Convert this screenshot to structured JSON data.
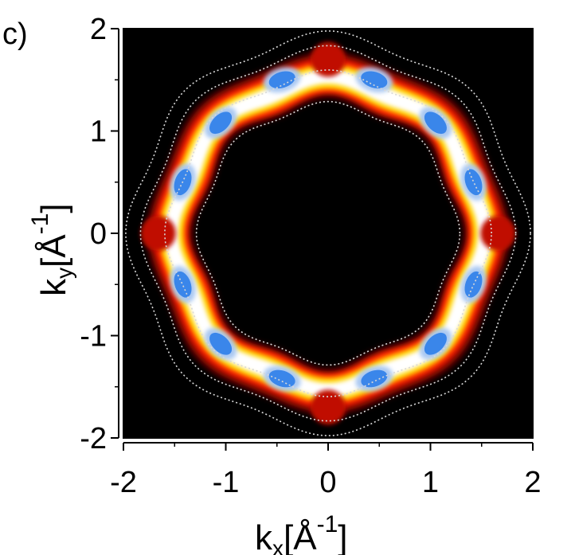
{
  "panel_label": "c)",
  "chart_data": {
    "type": "heatmap",
    "title": "",
    "xlabel": {
      "main": "k",
      "sub": "x",
      "unit": "[Å",
      "exp": "-1",
      "close": "]"
    },
    "ylabel": {
      "main": "k",
      "sub": "y",
      "unit": "[Å",
      "exp": "-1",
      "close": "]"
    },
    "xlim": [
      -2,
      2
    ],
    "ylim": [
      -2,
      2
    ],
    "xticks": [
      -2,
      -1,
      0,
      1,
      2
    ],
    "yticks": [
      -2,
      -1,
      0,
      1,
      2
    ],
    "xtick_labels": [
      "-2",
      "-1",
      "0",
      "1",
      "2"
    ],
    "ytick_labels": [
      "-2",
      "-1",
      "0",
      "1",
      "2"
    ],
    "grid": false,
    "colormap": [
      "#000000",
      "#c01000",
      "#ff2a00",
      "#ffd400",
      "#ffffff",
      "#3a86ea"
    ],
    "ring": {
      "shape": "octagonal-annulus",
      "k_inner": 1.35,
      "k_outer": 1.7,
      "symmetry": 8
    },
    "hotspots_blue": [
      {
        "kx": -0.45,
        "ky": 1.5
      },
      {
        "kx": 0.45,
        "ky": 1.5
      },
      {
        "kx": -1.05,
        "ky": 1.08
      },
      {
        "kx": 1.05,
        "ky": 1.08
      },
      {
        "kx": -1.42,
        "ky": 0.5
      },
      {
        "kx": 1.42,
        "ky": 0.5
      },
      {
        "kx": -1.42,
        "ky": -0.5
      },
      {
        "kx": 1.42,
        "ky": -0.5
      },
      {
        "kx": -1.05,
        "ky": -1.08
      },
      {
        "kx": 1.05,
        "ky": -1.08
      },
      {
        "kx": -0.45,
        "ky": -1.42
      },
      {
        "kx": 0.45,
        "ky": -1.42
      }
    ],
    "hotspots_red": [
      {
        "kx": 0.0,
        "ky": 1.7
      },
      {
        "kx": 0.0,
        "ky": -1.7
      },
      {
        "kx": -1.66,
        "ky": 0.0
      },
      {
        "kx": 1.66,
        "ky": 0.0
      }
    ],
    "contours_dotted": [
      1.55,
      1.78,
      1.92,
      1.25
    ]
  }
}
